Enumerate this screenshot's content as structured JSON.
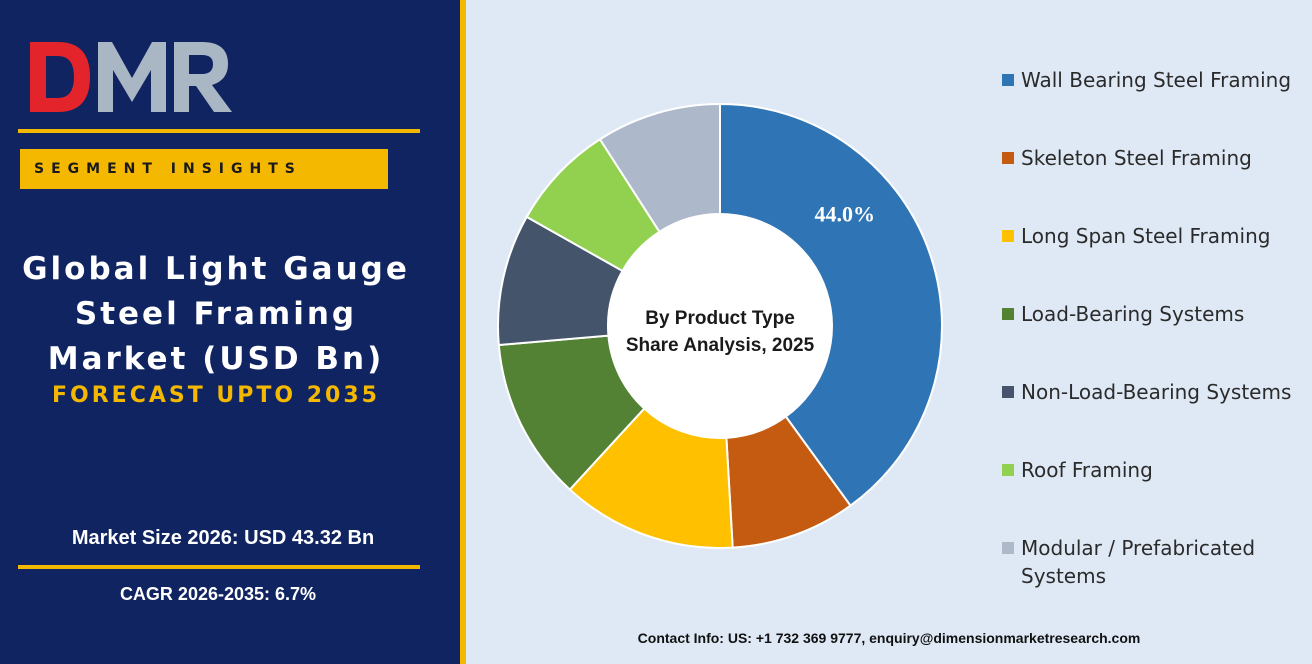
{
  "brand": {
    "logo_text": "DMR",
    "colors": {
      "navy": "#0f2461",
      "gold": "#f5b800",
      "panel": "#dfe9f5",
      "logo_red": "#e3242b",
      "logo_gray": "#a9b6c4"
    }
  },
  "left": {
    "segment_label": "SEGMENT INSIGHTS",
    "title_lines": [
      "Global Light Gauge",
      "Steel Framing",
      "Market (USD Bn)"
    ],
    "forecast": "FORECAST UPTO 2035",
    "market_size": "Market Size 2026: USD 43.32 Bn",
    "cagr": "CAGR 2026-2035: 6.7%"
  },
  "chart_data": {
    "type": "pie",
    "style": "donut",
    "center_text": [
      "By Product Type",
      "Share Analysis, 2025"
    ],
    "categories": [
      "Wall Bearing Steel Framing",
      "Skeleton Steel Framing",
      "Long Span Steel Framing",
      "Load-Bearing Systems",
      "Non-Load-Bearing Systems",
      "Roof Framing",
      "Modular / Prefabricated Systems"
    ],
    "values": [
      44.0,
      10.0,
      14.0,
      13.0,
      10.5,
      8.5,
      10.0
    ],
    "colors": [
      "#2f75b5",
      "#c55a11",
      "#ffc000",
      "#548235",
      "#44546a",
      "#92d050",
      "#adb9ca"
    ],
    "data_labels": [
      "44.0%",
      "",
      "",
      "",
      "",
      "",
      ""
    ],
    "legend_position": "right"
  },
  "contact": "Contact Info: US: +1 732 369 9777, enquiry@dimensionmarketresearch.com"
}
